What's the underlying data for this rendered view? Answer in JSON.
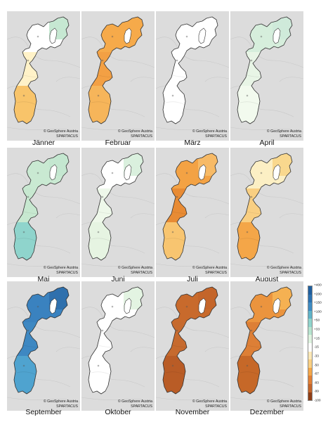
{
  "credit_line1": "© GeoSphere Austria",
  "credit_line2": "SPARTACUS",
  "panels": [
    {
      "label": "Jänner",
      "north": "#ffffff",
      "northEdge": "#c6e8d2",
      "center": "#fff2c8",
      "south": "#f8c46a"
    },
    {
      "label": "Februar",
      "north": "#f6aa4a",
      "northEdge": "#f6aa4a",
      "center": "#f3a044",
      "south": "#f6b55a"
    },
    {
      "label": "März",
      "north": "#ffffff",
      "northEdge": "#ffffff",
      "center": "#ffffff",
      "south": "#ffffff"
    },
    {
      "label": "April",
      "north": "#d6eedc",
      "northEdge": "#cfeada",
      "center": "#e8f5e6",
      "south": "#f2faee"
    },
    {
      "label": "Mai",
      "north": "#c9e9d2",
      "northEdge": "#c4e7d0",
      "center": "#c7e8d0",
      "south": "#8fd4cc"
    },
    {
      "label": "Juni",
      "north": "#ffffff",
      "northEdge": "#daf0de",
      "center": "#eef8ea",
      "south": "#e6f4e2"
    },
    {
      "label": "Juli",
      "north": "#f3a244",
      "northEdge": "#f7ba66",
      "center": "#e88b34",
      "south": "#f8c570"
    },
    {
      "label": "August",
      "north": "#fcefc4",
      "northEdge": "#f9d88e",
      "center": "#f9cf82",
      "south": "#f4a648"
    },
    {
      "label": "September",
      "north": "#3a82bf",
      "northEdge": "#2f70ad",
      "center": "#3e88c2",
      "south": "#4fa3cf"
    },
    {
      "label": "Oktober",
      "north": "#ffffff",
      "northEdge": "#e3f4e2",
      "center": "#ffffff",
      "south": "#ffffff"
    },
    {
      "label": "November",
      "north": "#c86a2c",
      "northEdge": "#c4652a",
      "center": "#c66a2e",
      "south": "#b95c26"
    },
    {
      "label": "Dezember",
      "north": "#eb943e",
      "northEdge": "#f5b152",
      "center": "#dd7f36",
      "south": "#c66828"
    }
  ],
  "legend": {
    "ticks": [
      "+400",
      "+200",
      "+150",
      "+100",
      "+50",
      "+33",
      "+15",
      "-15",
      "-33",
      "-50",
      "-67",
      "-83",
      "-99",
      "-100"
    ],
    "colors": [
      "#1f5f9e",
      "#2b72b1",
      "#3f8cc3",
      "#5fb3c8",
      "#8fd4cc",
      "#b7e4cf",
      "#def3df",
      "#ffffff",
      "#fbe8b6",
      "#f9cf82",
      "#f4a648",
      "#e17f35",
      "#c4652a",
      "#8f3e17"
    ]
  }
}
